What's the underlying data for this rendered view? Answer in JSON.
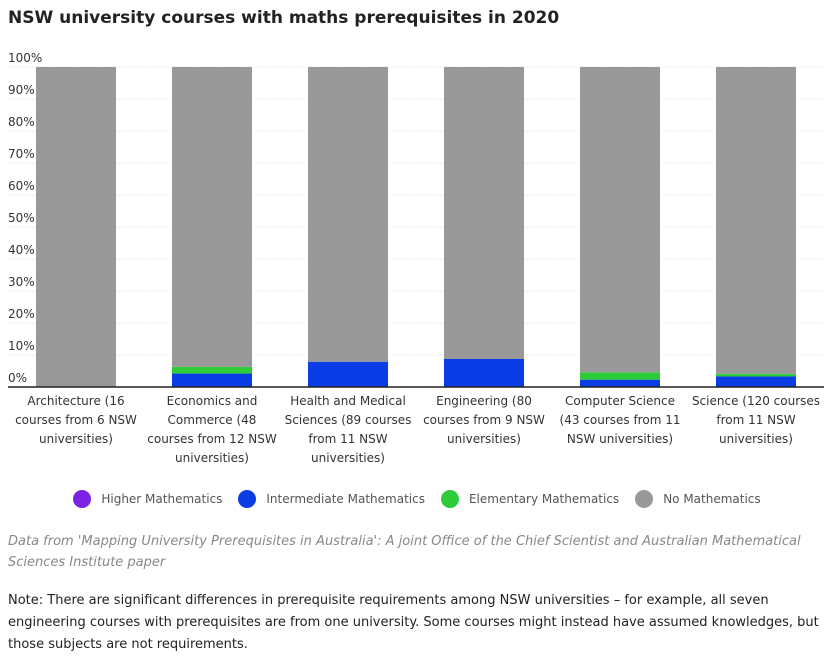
{
  "chart_data": {
    "type": "bar",
    "stacked": true,
    "title": "NSW university courses with maths prerequisites in 2020",
    "xlabel": "",
    "ylabel": "",
    "ylim": [
      0,
      100
    ],
    "y_ticks": [
      "0%",
      "10%",
      "20%",
      "30%",
      "40%",
      "50%",
      "60%",
      "70%",
      "80%",
      "90%",
      "100%"
    ],
    "categories": [
      [
        "Architecture (16",
        "courses from 6 NSW",
        "universities)"
      ],
      [
        "Economics and",
        "Commerce (48",
        "courses from 12 NSW",
        "universities)"
      ],
      [
        "Health and Medical",
        "Sciences (89 courses",
        "from 11 NSW",
        "universities)"
      ],
      [
        "Engineering (80",
        "courses from 9 NSW",
        "universities)"
      ],
      [
        "Computer Science",
        "(43 courses from 11",
        "NSW universities)"
      ],
      [
        "Science (120 courses",
        "from 11 NSW",
        "universities)"
      ]
    ],
    "series": [
      {
        "name": "Higher Mathematics",
        "color": "#7b22e6",
        "values": [
          0,
          0,
          0,
          0,
          0,
          0
        ]
      },
      {
        "name": "Intermediate Mathematics",
        "color": "#0a3de6",
        "values": [
          0,
          4.2,
          7.9,
          8.75,
          2.3,
          3.3
        ]
      },
      {
        "name": "Elementary Mathematics",
        "color": "#2ecc3a",
        "values": [
          0,
          2.1,
          0,
          0,
          2.3,
          0.8
        ]
      },
      {
        "name": "No Mathematics",
        "color": "#999999",
        "values": [
          100,
          93.7,
          92.1,
          91.25,
          95.4,
          95.9
        ]
      }
    ],
    "grid": true,
    "legend_position": "bottom"
  },
  "source_text": "Data from 'Mapping University Prerequisites in Australia': A joint Office of the Chief Scientist and Australian Mathematical Sciences Institute paper",
  "note_text": "Note: There are significant differences in prerequisite requirements among NSW universities – for example, all seven engineering courses with prerequisites are from one university. Some courses might instead have assumed knowledges, but those subjects are not requirements."
}
